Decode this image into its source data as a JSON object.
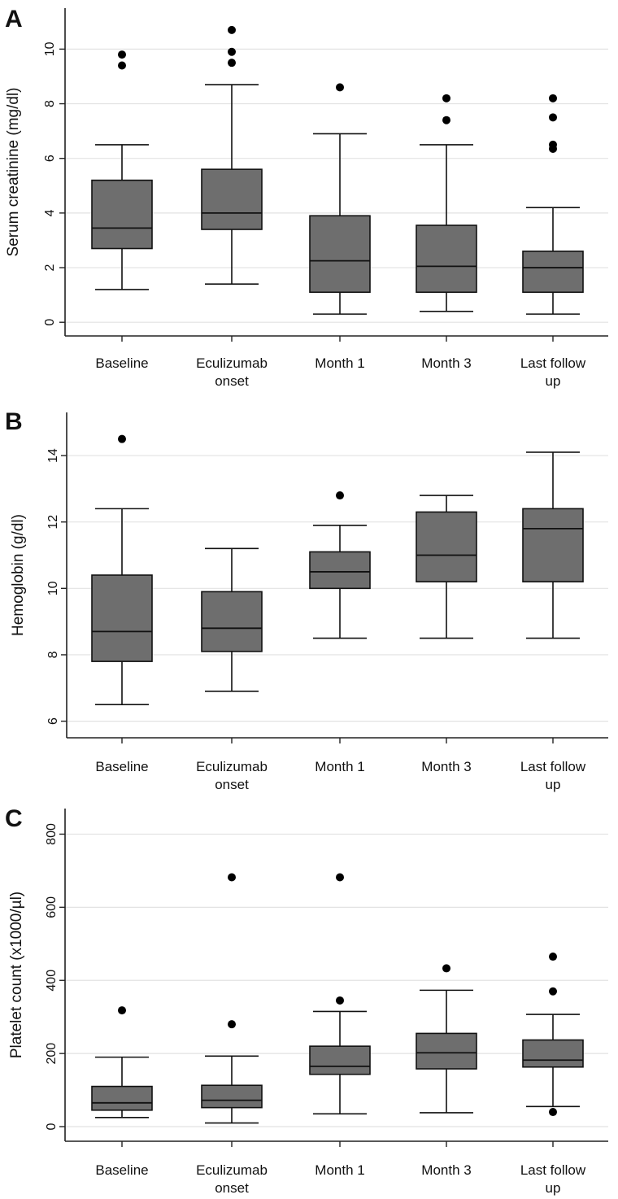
{
  "chart_data": [
    {
      "type": "boxplot",
      "panel_label": "A",
      "ylabel": "Serum creatinine (mg/dl)",
      "categories": [
        [
          "Baseline"
        ],
        [
          "Eculizumab",
          "onset"
        ],
        [
          "Month 1"
        ],
        [
          "Month 3"
        ],
        [
          "Last follow",
          "up"
        ]
      ],
      "yticks": [
        0,
        2,
        4,
        6,
        8,
        10
      ],
      "ylim": [
        -0.5,
        11.5
      ],
      "grid": true,
      "boxes": [
        {
          "whisker_low": 1.2,
          "q1": 2.7,
          "median": 3.45,
          "q3": 5.2,
          "whisker_high": 6.5,
          "outliers": [
            9.4,
            9.8
          ]
        },
        {
          "whisker_low": 1.4,
          "q1": 3.4,
          "median": 4.0,
          "q3": 5.6,
          "whisker_high": 8.7,
          "outliers": [
            9.5,
            9.9,
            10.7
          ]
        },
        {
          "whisker_low": 0.3,
          "q1": 1.1,
          "median": 2.25,
          "q3": 3.9,
          "whisker_high": 6.9,
          "outliers": [
            8.6
          ]
        },
        {
          "whisker_low": 0.4,
          "q1": 1.1,
          "median": 2.05,
          "q3": 3.55,
          "whisker_high": 6.5,
          "outliers": [
            7.4,
            8.2
          ]
        },
        {
          "whisker_low": 0.3,
          "q1": 1.1,
          "median": 2.0,
          "q3": 2.6,
          "whisker_high": 4.2,
          "outliers": [
            6.35,
            6.5,
            7.5,
            8.2
          ]
        }
      ]
    },
    {
      "type": "boxplot",
      "panel_label": "B",
      "ylabel": "Hemoglobin (g/dl)",
      "categories": [
        [
          "Baseline"
        ],
        [
          "Eculizumab",
          "onset"
        ],
        [
          "Month 1"
        ],
        [
          "Month 3"
        ],
        [
          "Last follow",
          "up"
        ]
      ],
      "yticks": [
        6,
        8,
        10,
        12,
        14
      ],
      "ylim": [
        5.5,
        15.3
      ],
      "grid": true,
      "boxes": [
        {
          "whisker_low": 6.5,
          "q1": 7.8,
          "median": 8.7,
          "q3": 10.4,
          "whisker_high": 12.4,
          "outliers": [
            14.5
          ]
        },
        {
          "whisker_low": 6.9,
          "q1": 8.1,
          "median": 8.8,
          "q3": 9.9,
          "whisker_high": 11.2,
          "outliers": []
        },
        {
          "whisker_low": 8.5,
          "q1": 10.0,
          "median": 10.5,
          "q3": 11.1,
          "whisker_high": 11.9,
          "outliers": [
            12.8
          ]
        },
        {
          "whisker_low": 8.5,
          "q1": 10.2,
          "median": 11.0,
          "q3": 12.3,
          "whisker_high": 12.8,
          "outliers": []
        },
        {
          "whisker_low": 8.5,
          "q1": 10.2,
          "median": 11.8,
          "q3": 12.4,
          "whisker_high": 14.1,
          "outliers": []
        }
      ]
    },
    {
      "type": "boxplot",
      "panel_label": "C",
      "ylabel": "Platelet count (x1000/µl)",
      "categories": [
        [
          "Baseline"
        ],
        [
          "Eculizumab",
          "onset"
        ],
        [
          "Month 1"
        ],
        [
          "Month 3"
        ],
        [
          "Last follow",
          "up"
        ]
      ],
      "yticks": [
        0,
        200,
        400,
        600,
        800
      ],
      "ylim": [
        -40,
        870
      ],
      "grid": true,
      "boxes": [
        {
          "whisker_low": 25,
          "q1": 45,
          "median": 65,
          "q3": 110,
          "whisker_high": 190,
          "outliers": [
            318
          ]
        },
        {
          "whisker_low": 10,
          "q1": 52,
          "median": 72,
          "q3": 113,
          "whisker_high": 193,
          "outliers": [
            280,
            682
          ]
        },
        {
          "whisker_low": 35,
          "q1": 143,
          "median": 165,
          "q3": 220,
          "whisker_high": 315,
          "outliers": [
            345,
            682
          ]
        },
        {
          "whisker_low": 38,
          "q1": 158,
          "median": 202,
          "q3": 255,
          "whisker_high": 373,
          "outliers": [
            433
          ]
        },
        {
          "whisker_low": 55,
          "q1": 163,
          "median": 182,
          "q3": 237,
          "whisker_high": 307,
          "outliers": [
            40,
            370,
            465
          ]
        }
      ]
    }
  ]
}
